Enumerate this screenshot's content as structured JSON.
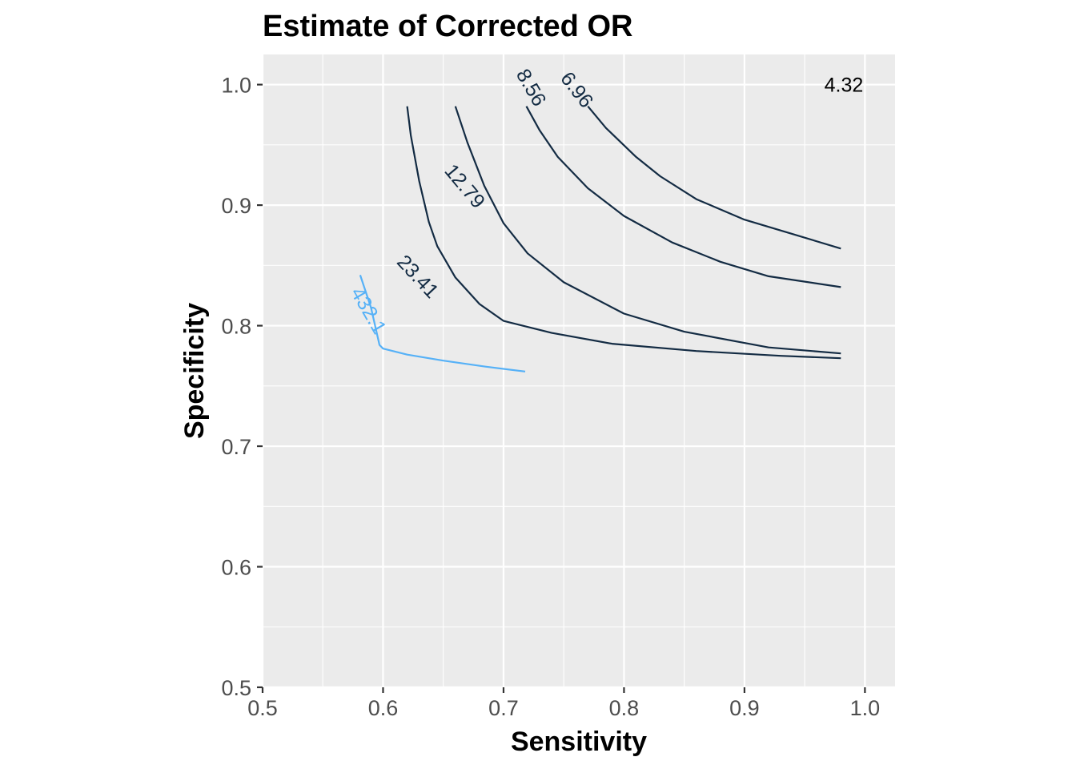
{
  "chart_data": {
    "type": "line",
    "title": "Estimate of Corrected OR",
    "xlabel": "Sensitivity",
    "ylabel": "Specificity",
    "xlim": [
      0.5,
      1.025
    ],
    "ylim": [
      0.5,
      1.025
    ],
    "x_ticks": [
      "0.5",
      "0.6",
      "0.7",
      "0.8",
      "0.9",
      "1.0"
    ],
    "y_ticks": [
      "0.5",
      "0.6",
      "0.7",
      "0.8",
      "0.9",
      "1.0"
    ],
    "grid": true,
    "legend": "none",
    "colors": {
      "dark": "#132b43",
      "light": "#56b1f7"
    },
    "annotation": {
      "label": "4.32",
      "x": 0.98,
      "y": 1.0
    },
    "series": [
      {
        "label": "6.96",
        "color": "#132b43",
        "label_at": [
          0.76,
          0.995
        ],
        "label_angle": 52,
        "points": [
          [
            0.77,
            0.982
          ],
          [
            0.785,
            0.964
          ],
          [
            0.81,
            0.94
          ],
          [
            0.83,
            0.924
          ],
          [
            0.86,
            0.905
          ],
          [
            0.9,
            0.888
          ],
          [
            0.94,
            0.876
          ],
          [
            0.98,
            0.864
          ]
        ]
      },
      {
        "label": "8.56",
        "color": "#132b43",
        "label_at": [
          0.722,
          0.997
        ],
        "label_angle": 60,
        "points": [
          [
            0.719,
            0.982
          ],
          [
            0.73,
            0.962
          ],
          [
            0.745,
            0.94
          ],
          [
            0.77,
            0.914
          ],
          [
            0.8,
            0.891
          ],
          [
            0.84,
            0.869
          ],
          [
            0.88,
            0.853
          ],
          [
            0.92,
            0.841
          ],
          [
            0.98,
            0.832
          ]
        ]
      },
      {
        "label": "12.79",
        "color": "#132b43",
        "label_at": [
          0.667,
          0.915
        ],
        "label_angle": 50,
        "points": [
          [
            0.66,
            0.982
          ],
          [
            0.67,
            0.952
          ],
          [
            0.684,
            0.916
          ],
          [
            0.7,
            0.885
          ],
          [
            0.72,
            0.86
          ],
          [
            0.75,
            0.836
          ],
          [
            0.8,
            0.81
          ],
          [
            0.85,
            0.795
          ],
          [
            0.92,
            0.782
          ],
          [
            0.98,
            0.777
          ]
        ]
      },
      {
        "label": "23.41",
        "color": "#132b43",
        "label_at": [
          0.628,
          0.84
        ],
        "label_angle": 47,
        "points": [
          [
            0.62,
            0.982
          ],
          [
            0.623,
            0.958
          ],
          [
            0.63,
            0.92
          ],
          [
            0.638,
            0.886
          ],
          [
            0.645,
            0.866
          ],
          [
            0.66,
            0.84
          ],
          [
            0.68,
            0.818
          ],
          [
            0.7,
            0.804
          ],
          [
            0.74,
            0.794
          ],
          [
            0.79,
            0.785
          ],
          [
            0.86,
            0.779
          ],
          [
            0.93,
            0.775
          ],
          [
            0.98,
            0.773
          ]
        ]
      },
      {
        "label": "432.1",
        "color": "#56b1f7",
        "label_at": [
          0.587,
          0.812
        ],
        "label_angle": 60,
        "points": [
          [
            0.581,
            0.842
          ],
          [
            0.59,
            0.815
          ],
          [
            0.597,
            0.784
          ],
          [
            0.6,
            0.781
          ],
          [
            0.62,
            0.776
          ],
          [
            0.65,
            0.771
          ],
          [
            0.685,
            0.766
          ],
          [
            0.718,
            0.762
          ]
        ]
      }
    ]
  }
}
